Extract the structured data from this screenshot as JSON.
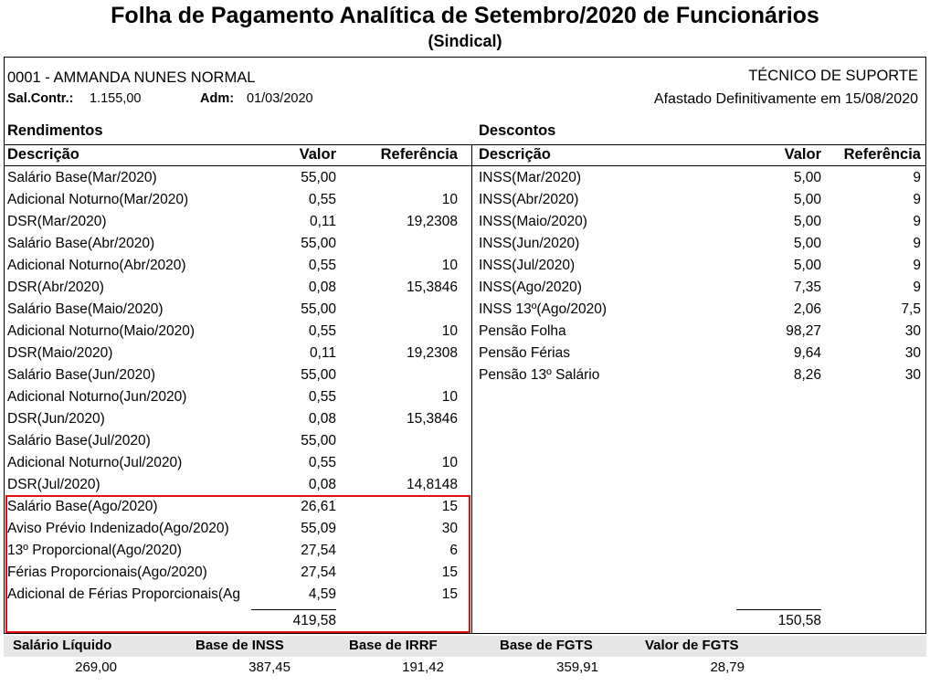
{
  "header": {
    "title": "Folha de Pagamento Analítica de Setembro/2020 de Funcionários",
    "subtitle": "(Sindical)"
  },
  "employee": {
    "name": "0001 - AMMANDA NUNES  NORMAL",
    "role": "TÉCNICO DE SUPORTE",
    "salary_label": "Sal.Contr.:",
    "salary": "1.155,00",
    "admission_label": "Adm:",
    "admission": "01/03/2020",
    "status": "Afastado Definitivamente em 15/08/2020"
  },
  "earnings": {
    "title": "Rendimentos",
    "columns": [
      "Descrição",
      "Valor",
      "Referência"
    ],
    "rows": [
      {
        "desc": "Salário Base(Mar/2020)",
        "value": "55,00"
      },
      {
        "desc": "Adicional Noturno(Mar/2020)",
        "value": "0,55",
        "ref": "10"
      },
      {
        "desc": "DSR(Mar/2020)",
        "value": "0,11",
        "ref": "19,2308"
      },
      {
        "desc": "Salário Base(Abr/2020)",
        "value": "55,00"
      },
      {
        "desc": "Adicional Noturno(Abr/2020)",
        "value": "0,55",
        "ref": "10"
      },
      {
        "desc": "DSR(Abr/2020)",
        "value": "0,08",
        "ref": "15,3846"
      },
      {
        "desc": "Salário Base(Maio/2020)",
        "value": "55,00"
      },
      {
        "desc": "Adicional Noturno(Maio/2020)",
        "value": "0,55",
        "ref": "10"
      },
      {
        "desc": "DSR(Maio/2020)",
        "value": "0,11",
        "ref": "19,2308"
      },
      {
        "desc": "Salário Base(Jun/2020)",
        "value": "55,00"
      },
      {
        "desc": "Adicional Noturno(Jun/2020)",
        "value": "0,55",
        "ref": "10"
      },
      {
        "desc": "DSR(Jun/2020)",
        "value": "0,08",
        "ref": "15,3846"
      },
      {
        "desc": "Salário Base(Jul/2020)",
        "value": "55,00"
      },
      {
        "desc": "Adicional Noturno(Jul/2020)",
        "value": "0,55",
        "ref": "10"
      },
      {
        "desc": "DSR(Jul/2020)",
        "value": "0,08",
        "ref": "14,8148"
      },
      {
        "desc": "Salário Base(Ago/2020)",
        "value": "26,61",
        "ref": "15"
      },
      {
        "desc": "Aviso Prévio Indenizado(Ago/2020)",
        "value": "55,09",
        "ref": "30"
      },
      {
        "desc": "13º Proporcional(Ago/2020)",
        "value": "27,54",
        "ref": "6"
      },
      {
        "desc": "Férias Proporcionais(Ago/2020)",
        "value": "27,54",
        "ref": "15"
      },
      {
        "desc": "Adicional de Férias Proporcionais(Ag",
        "value": "4,59",
        "ref": "15"
      }
    ],
    "total": "419,58"
  },
  "deductions": {
    "title": "Descontos",
    "columns": [
      "Descrição",
      "Valor",
      "Referência"
    ],
    "rows": [
      {
        "desc": "INSS(Mar/2020)",
        "value": "5,00",
        "ref": "9"
      },
      {
        "desc": "INSS(Abr/2020)",
        "value": "5,00",
        "ref": "9"
      },
      {
        "desc": "INSS(Maio/2020)",
        "value": "5,00",
        "ref": "9"
      },
      {
        "desc": "INSS(Jun/2020)",
        "value": "5,00",
        "ref": "9"
      },
      {
        "desc": "INSS(Jul/2020)",
        "value": "5,00",
        "ref": "9"
      },
      {
        "desc": "INSS(Ago/2020)",
        "value": "7,35",
        "ref": "9"
      },
      {
        "desc": "INSS 13º(Ago/2020)",
        "value": "2,06",
        "ref": "7,5"
      },
      {
        "desc": "Pensão Folha",
        "value": "98,27",
        "ref": "30"
      },
      {
        "desc": "Pensão Férias",
        "value": "9,64",
        "ref": "30"
      },
      {
        "desc": "Pensão 13º Salário",
        "value": "8,26",
        "ref": "30"
      }
    ],
    "total": "150,58"
  },
  "footer": [
    {
      "label": "Salário Líquido",
      "value": "269,00"
    },
    {
      "label": "Base de INSS",
      "value": "387,45"
    },
    {
      "label": "Base de IRRF",
      "value": "191,42"
    },
    {
      "label": "Base de FGTS",
      "value": "359,91"
    },
    {
      "label": "Valor de FGTS",
      "value": "28,79"
    }
  ]
}
